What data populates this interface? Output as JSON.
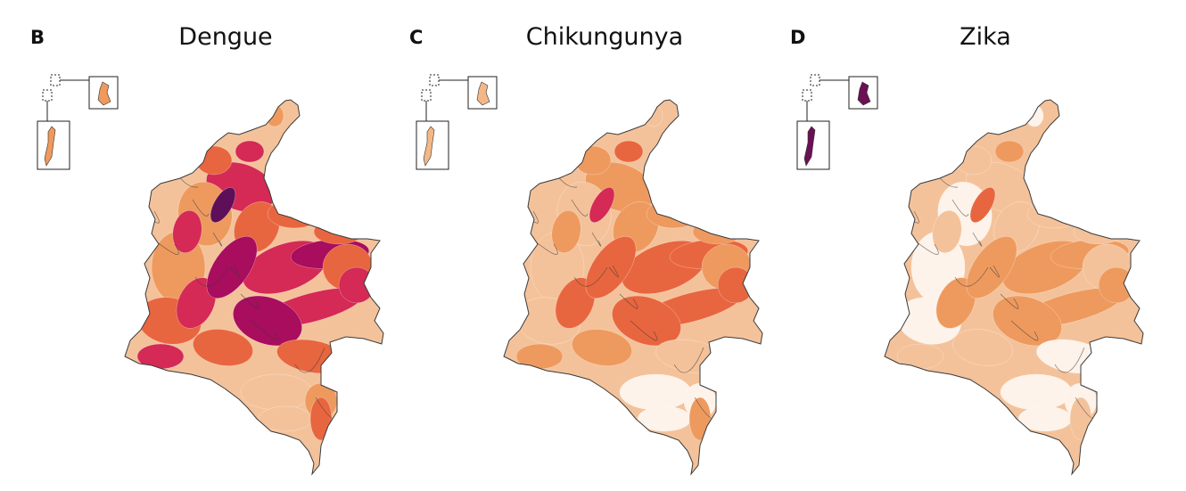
{
  "panels": [
    {
      "letter": "B",
      "title": "Dengue",
      "intensity": 3,
      "island_fill": "#ef9a5c"
    },
    {
      "letter": "C",
      "title": "Chikungunya",
      "intensity": 2,
      "island_fill": "#f4b886"
    },
    {
      "letter": "D",
      "title": "Zika",
      "intensity": 1,
      "island_fill": "#6b1055"
    }
  ],
  "palette": {
    "level0": "#fdf3ea",
    "level1": "#f4c29a",
    "level2": "#ee9a5e",
    "level3": "#e8663f",
    "level4": "#d42a55",
    "level5": "#a80d5e",
    "level6": "#5e0f57",
    "boundary": "#3a3a3a"
  }
}
